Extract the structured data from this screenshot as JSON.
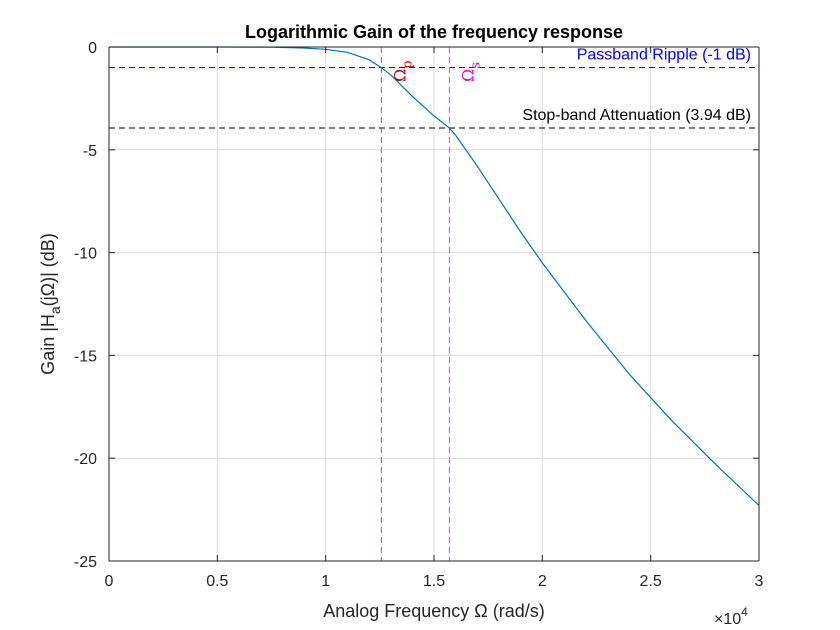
{
  "chart_data": {
    "type": "line",
    "title": "Logarithmic Gain of the frequency response",
    "xlabel": "Analog Frequency Ω (rad/s)",
    "ylabel": "Gain |H_a(jΩ)| (dB)",
    "ylabel_parts": {
      "pre": "Gain |H",
      "sub": "a",
      "post": "(jΩ)| (dB)"
    },
    "x_exponent_label": {
      "base": "×10",
      "exp": "4"
    },
    "xlim": [
      0,
      3
    ],
    "ylim": [
      -25,
      0
    ],
    "x_ticks": [
      0,
      0.5,
      1,
      1.5,
      2,
      2.5,
      3
    ],
    "x_tick_labels": [
      "0",
      "0.5",
      "1",
      "1.5",
      "2",
      "2.5",
      "3"
    ],
    "y_ticks": [
      0,
      -5,
      -10,
      -15,
      -20,
      -25
    ],
    "y_tick_labels": [
      "0",
      "-5",
      "-10",
      "-15",
      "-20",
      "-25"
    ],
    "grid": true,
    "series": [
      {
        "color": "#0072bd",
        "x": [
          0,
          0.25,
          0.5,
          0.75,
          0.9,
          1.0,
          1.1,
          1.2,
          1.257,
          1.3,
          1.4,
          1.5,
          1.571,
          1.6,
          1.7,
          1.8,
          1.9,
          2.0,
          2.2,
          2.4,
          2.6,
          2.8,
          3.0
        ],
        "y": [
          0,
          0,
          0,
          -0.01,
          -0.05,
          -0.11,
          -0.26,
          -0.62,
          -1.0,
          -1.35,
          -2.4,
          -3.35,
          -3.94,
          -4.3,
          -5.8,
          -7.4,
          -9.0,
          -10.5,
          -13.3,
          -15.9,
          -18.2,
          -20.3,
          -22.3
        ]
      }
    ],
    "reference_lines": [
      {
        "orientation": "horizontal",
        "value": -1,
        "color": "#1a1a80",
        "label": "Passband Ripple (-1 dB)",
        "label_color": "#0000ff"
      },
      {
        "orientation": "horizontal",
        "value": -3.94,
        "color": "#000000",
        "label": "Stop-band Attenuation (3.94 dB)",
        "label_color": "#000000"
      },
      {
        "orientation": "vertical",
        "value": 1.257,
        "color": "#e0405a",
        "label_symbol": "Ω",
        "label_sub": "p",
        "label_color": "#cc0000"
      },
      {
        "orientation": "vertical",
        "value": 1.571,
        "color": "#e040e0",
        "label_symbol": "Ω",
        "label_sub": "s",
        "label_color": "#e000e0"
      }
    ],
    "colors": {
      "axis": "#262626",
      "grid": "#dcdcdc",
      "line": "#0072bd"
    }
  }
}
